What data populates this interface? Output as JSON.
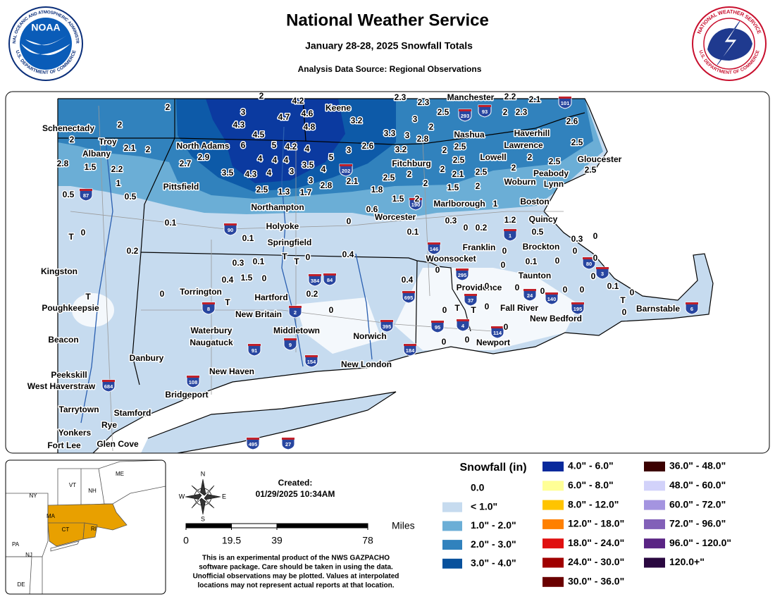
{
  "header": {
    "title": "National Weather Service",
    "subtitle": "January 28-28, 2025 Snowfall Totals",
    "source": "Analysis Data Source: Regional Observations",
    "noaa_label": "NOAA",
    "noaa_ring_top": "NATIONAL OCEANIC AND ATMOSPHERIC ADMINISTRATION",
    "noaa_ring_bottom": "U.S. DEPARTMENT OF COMMERCE",
    "nws_ring_top": "NATIONAL WEATHER SERVICE",
    "nws_ring_bottom": "U.S. DEPARTMENT OF COMMERCE"
  },
  "map": {
    "cities": [
      "Schenectady",
      "Troy",
      "Albany",
      "North Adams",
      "Pittsfield",
      "Keene",
      "Manchester",
      "Nashua",
      "Haverhill",
      "Lawrence",
      "Lowell",
      "Gloucester",
      "Peabody",
      "Lynn",
      "Woburn",
      "Fitchburg",
      "Marlborough",
      "Boston",
      "Northampton",
      "Worcester",
      "Holyoke",
      "Quincy",
      "Springfield",
      "Franklin",
      "Brockton",
      "Kingston",
      "Woonsocket",
      "Taunton",
      "Torrington",
      "Providence",
      "Hartford",
      "Poughkeepsie",
      "Fall River",
      "Barnstable",
      "New Britain",
      "New Bedford",
      "Waterbury",
      "Middletown",
      "Norwich",
      "Beacon",
      "Naugatuck",
      "Newport",
      "Danbury",
      "New London",
      "Peekskill",
      "New Haven",
      "West Haverstraw",
      "Bridgeport",
      "Tarrytown",
      "Stamford",
      "Rye",
      "Yonkers",
      "Fort Lee",
      "Glen Cove"
    ],
    "observations": [
      2,
      4.2,
      2.3,
      2.3,
      2.2,
      2.1,
      2,
      3,
      4.6,
      2.5,
      2,
      2.3,
      4.7,
      3.2,
      3,
      2,
      4.3,
      4.8,
      2,
      2.6,
      3.3,
      3,
      2.8,
      4.5,
      2,
      6,
      5,
      4.2,
      4,
      5,
      3,
      2.6,
      3.2,
      2,
      2.5,
      2.5,
      2.1,
      2,
      2.9,
      4,
      4,
      4,
      3.5,
      4,
      2.5,
      2,
      2,
      2.5,
      2.7,
      2.8,
      1.5,
      2.2,
      3.5,
      4.3,
      4,
      3,
      2.5,
      2,
      2,
      2.1,
      2.5,
      2.5,
      3,
      2.8,
      2.1,
      2,
      1.5,
      2,
      1,
      1.8,
      2.5,
      1.3,
      1.7,
      0.5,
      0.5,
      1.5,
      2,
      1,
      0.6,
      0.1,
      0,
      0.3,
      0,
      0.2,
      1.2,
      0.5,
      0.3,
      0,
      "T",
      0,
      0.1,
      0.1,
      0.2,
      0,
      0,
      0.4,
      "T",
      "T",
      0,
      0.1,
      0.3,
      0.1,
      0,
      0,
      0,
      0,
      0.4,
      1.5,
      0,
      0,
      0.4,
      "T",
      0,
      0.2,
      0,
      0,
      0,
      0,
      0.1,
      0,
      "T",
      0,
      0,
      0,
      "T",
      "T",
      0,
      "T",
      0,
      0,
      0,
      0
    ],
    "shields": [
      87,
      90,
      293,
      93,
      101,
      202,
      190,
      1,
      146,
      295,
      384,
      84,
      695,
      2,
      8,
      395,
      91,
      9,
      154,
      184,
      95,
      4,
      114,
      37,
      24,
      140,
      195,
      80,
      3,
      6,
      684,
      108,
      495,
      27
    ]
  },
  "legend": {
    "title": "Snowfall (in)",
    "items": [
      {
        "label": "0.0",
        "color": "#ffffff"
      },
      {
        "label": "< 1.0\"",
        "color": "#c6dbef"
      },
      {
        "label": "1.0\" - 2.0\"",
        "color": "#6baed6"
      },
      {
        "label": "2.0\" - 3.0\"",
        "color": "#3182bd"
      },
      {
        "label": "3.0\" - 4.0\"",
        "color": "#08519c"
      },
      {
        "label": "4.0\" - 6.0\"",
        "color": "#08299c"
      },
      {
        "label": "6.0\" - 8.0\"",
        "color": "#ffff96"
      },
      {
        "label": "8.0\" - 12.0\"",
        "color": "#ffc400"
      },
      {
        "label": "12.0\" - 18.0\"",
        "color": "#ff8000"
      },
      {
        "label": "18.0\" - 24.0\"",
        "color": "#e01010"
      },
      {
        "label": "24.0\" - 30.0\"",
        "color": "#a00000"
      },
      {
        "label": "30.0\" - 36.0\"",
        "color": "#6a0000"
      },
      {
        "label": "36.0\" - 48.0\"",
        "color": "#3c0000"
      },
      {
        "label": "48.0\" - 60.0\"",
        "color": "#d2d2fa"
      },
      {
        "label": "60.0\" - 72.0\"",
        "color": "#a494e0"
      },
      {
        "label": "72.0\" - 96.0\"",
        "color": "#8260b8"
      },
      {
        "label": "96.0\" - 120.0\"",
        "color": "#5a2484"
      },
      {
        "label": "120.0+\"",
        "color": "#2a0840"
      }
    ]
  },
  "info": {
    "created_label": "Created:",
    "created": "01/29/2025 10:34AM",
    "compass": [
      "N",
      "E",
      "S",
      "W"
    ],
    "scale_unit": "Miles",
    "scale_ticks": [
      0,
      19.5,
      39,
      78
    ],
    "disclaimer": [
      "This is an experimental product of the NWS GAZPACHO",
      "software package. Care should be taken in using the data.",
      "Unofficial observations may be plotted. Values at interpolated",
      "locations may not represent actual reports at that location."
    ]
  },
  "inset": {
    "labels": [
      "NY",
      "VT",
      "NH",
      "ME",
      "MA",
      "CT",
      "RI",
      "PA",
      "NJ",
      "DE"
    ]
  }
}
